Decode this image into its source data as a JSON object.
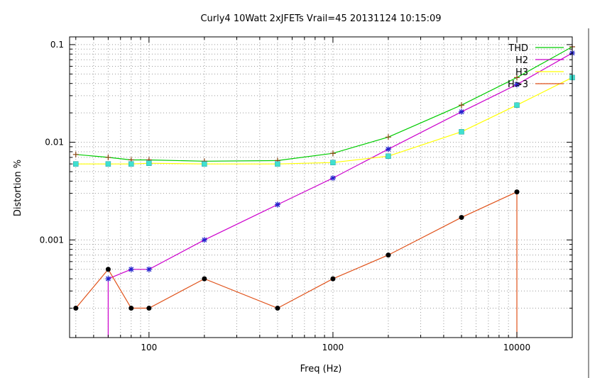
{
  "chart_data": {
    "type": "line",
    "title": "Curly4 10Watt 2xJFETs Vrail=45 20131124 10:15:09",
    "xlabel": "Freq (Hz)",
    "ylabel": "Distortion %",
    "xscale": "log",
    "yscale": "log",
    "xlim": [
      37,
      20000
    ],
    "ylim": [
      0.0001,
      0.12
    ],
    "grid": true,
    "legend_position": "top-right",
    "x_tick_labels": [
      "100",
      "1000",
      "10000"
    ],
    "y_tick_labels": [
      "0.1",
      "0.01",
      "0.001"
    ],
    "x": [
      40,
      60,
      80,
      100,
      200,
      500,
      1000,
      2000,
      5000,
      10000,
      20000
    ],
    "series": [
      {
        "name": "THD",
        "color": "#00cc00",
        "marker": "plus",
        "values": [
          0.0075,
          0.007,
          0.0066,
          0.0066,
          0.0064,
          0.0065,
          0.0077,
          0.0113,
          0.024,
          0.046,
          0.095
        ]
      },
      {
        "name": "H2",
        "color": "#cc00cc",
        "marker": "star",
        "values": [
          null,
          0.0004,
          0.0005,
          0.0005,
          0.001,
          0.0023,
          0.0043,
          0.0085,
          0.0205,
          0.039,
          0.082
        ]
      },
      {
        "name": "H3",
        "color": "#ffff00",
        "marker": "square",
        "values": [
          0.006,
          0.006,
          0.006,
          0.0061,
          0.006,
          0.006,
          0.0062,
          0.0072,
          0.0128,
          0.024,
          0.046
        ]
      },
      {
        "name": "H>3",
        "color": "#e0521a",
        "marker": "circle",
        "values": [
          0.0002,
          0.0005,
          0.0002,
          0.0002,
          0.0004,
          0.0002,
          0.0004,
          0.0007,
          0.0017,
          0.0031,
          null
        ]
      }
    ]
  }
}
